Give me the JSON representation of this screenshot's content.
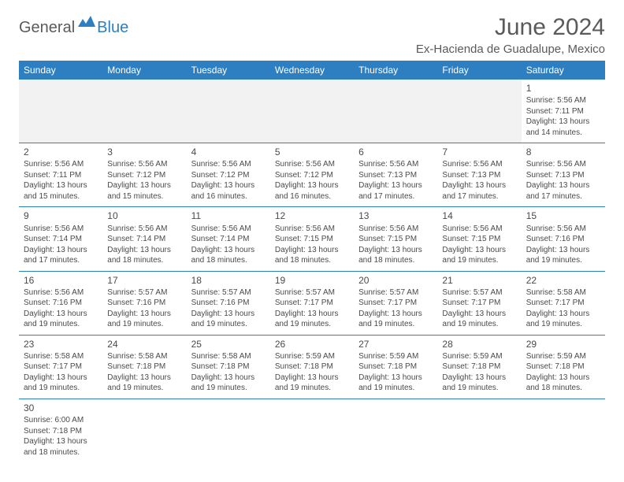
{
  "brand": {
    "part1": "General",
    "part2": "Blue"
  },
  "title": "June 2024",
  "location": "Ex-Hacienda de Guadalupe, Mexico",
  "colors": {
    "header_bg": "#2d7fc1",
    "header_text": "#ffffff",
    "border": "#2d7fc1",
    "empty_bg": "#f2f2f2",
    "body_text": "#4a4a4a",
    "title_text": "#5a5a5a"
  },
  "weekdays": [
    "Sunday",
    "Monday",
    "Tuesday",
    "Wednesday",
    "Thursday",
    "Friday",
    "Saturday"
  ],
  "weeks": [
    [
      null,
      null,
      null,
      null,
      null,
      null,
      {
        "d": "1",
        "sr": "Sunrise: 5:56 AM",
        "ss": "Sunset: 7:11 PM",
        "dl1": "Daylight: 13 hours",
        "dl2": "and 14 minutes."
      }
    ],
    [
      {
        "d": "2",
        "sr": "Sunrise: 5:56 AM",
        "ss": "Sunset: 7:11 PM",
        "dl1": "Daylight: 13 hours",
        "dl2": "and 15 minutes."
      },
      {
        "d": "3",
        "sr": "Sunrise: 5:56 AM",
        "ss": "Sunset: 7:12 PM",
        "dl1": "Daylight: 13 hours",
        "dl2": "and 15 minutes."
      },
      {
        "d": "4",
        "sr": "Sunrise: 5:56 AM",
        "ss": "Sunset: 7:12 PM",
        "dl1": "Daylight: 13 hours",
        "dl2": "and 16 minutes."
      },
      {
        "d": "5",
        "sr": "Sunrise: 5:56 AM",
        "ss": "Sunset: 7:12 PM",
        "dl1": "Daylight: 13 hours",
        "dl2": "and 16 minutes."
      },
      {
        "d": "6",
        "sr": "Sunrise: 5:56 AM",
        "ss": "Sunset: 7:13 PM",
        "dl1": "Daylight: 13 hours",
        "dl2": "and 17 minutes."
      },
      {
        "d": "7",
        "sr": "Sunrise: 5:56 AM",
        "ss": "Sunset: 7:13 PM",
        "dl1": "Daylight: 13 hours",
        "dl2": "and 17 minutes."
      },
      {
        "d": "8",
        "sr": "Sunrise: 5:56 AM",
        "ss": "Sunset: 7:13 PM",
        "dl1": "Daylight: 13 hours",
        "dl2": "and 17 minutes."
      }
    ],
    [
      {
        "d": "9",
        "sr": "Sunrise: 5:56 AM",
        "ss": "Sunset: 7:14 PM",
        "dl1": "Daylight: 13 hours",
        "dl2": "and 17 minutes."
      },
      {
        "d": "10",
        "sr": "Sunrise: 5:56 AM",
        "ss": "Sunset: 7:14 PM",
        "dl1": "Daylight: 13 hours",
        "dl2": "and 18 minutes."
      },
      {
        "d": "11",
        "sr": "Sunrise: 5:56 AM",
        "ss": "Sunset: 7:14 PM",
        "dl1": "Daylight: 13 hours",
        "dl2": "and 18 minutes."
      },
      {
        "d": "12",
        "sr": "Sunrise: 5:56 AM",
        "ss": "Sunset: 7:15 PM",
        "dl1": "Daylight: 13 hours",
        "dl2": "and 18 minutes."
      },
      {
        "d": "13",
        "sr": "Sunrise: 5:56 AM",
        "ss": "Sunset: 7:15 PM",
        "dl1": "Daylight: 13 hours",
        "dl2": "and 18 minutes."
      },
      {
        "d": "14",
        "sr": "Sunrise: 5:56 AM",
        "ss": "Sunset: 7:15 PM",
        "dl1": "Daylight: 13 hours",
        "dl2": "and 19 minutes."
      },
      {
        "d": "15",
        "sr": "Sunrise: 5:56 AM",
        "ss": "Sunset: 7:16 PM",
        "dl1": "Daylight: 13 hours",
        "dl2": "and 19 minutes."
      }
    ],
    [
      {
        "d": "16",
        "sr": "Sunrise: 5:56 AM",
        "ss": "Sunset: 7:16 PM",
        "dl1": "Daylight: 13 hours",
        "dl2": "and 19 minutes."
      },
      {
        "d": "17",
        "sr": "Sunrise: 5:57 AM",
        "ss": "Sunset: 7:16 PM",
        "dl1": "Daylight: 13 hours",
        "dl2": "and 19 minutes."
      },
      {
        "d": "18",
        "sr": "Sunrise: 5:57 AM",
        "ss": "Sunset: 7:16 PM",
        "dl1": "Daylight: 13 hours",
        "dl2": "and 19 minutes."
      },
      {
        "d": "19",
        "sr": "Sunrise: 5:57 AM",
        "ss": "Sunset: 7:17 PM",
        "dl1": "Daylight: 13 hours",
        "dl2": "and 19 minutes."
      },
      {
        "d": "20",
        "sr": "Sunrise: 5:57 AM",
        "ss": "Sunset: 7:17 PM",
        "dl1": "Daylight: 13 hours",
        "dl2": "and 19 minutes."
      },
      {
        "d": "21",
        "sr": "Sunrise: 5:57 AM",
        "ss": "Sunset: 7:17 PM",
        "dl1": "Daylight: 13 hours",
        "dl2": "and 19 minutes."
      },
      {
        "d": "22",
        "sr": "Sunrise: 5:58 AM",
        "ss": "Sunset: 7:17 PM",
        "dl1": "Daylight: 13 hours",
        "dl2": "and 19 minutes."
      }
    ],
    [
      {
        "d": "23",
        "sr": "Sunrise: 5:58 AM",
        "ss": "Sunset: 7:17 PM",
        "dl1": "Daylight: 13 hours",
        "dl2": "and 19 minutes."
      },
      {
        "d": "24",
        "sr": "Sunrise: 5:58 AM",
        "ss": "Sunset: 7:18 PM",
        "dl1": "Daylight: 13 hours",
        "dl2": "and 19 minutes."
      },
      {
        "d": "25",
        "sr": "Sunrise: 5:58 AM",
        "ss": "Sunset: 7:18 PM",
        "dl1": "Daylight: 13 hours",
        "dl2": "and 19 minutes."
      },
      {
        "d": "26",
        "sr": "Sunrise: 5:59 AM",
        "ss": "Sunset: 7:18 PM",
        "dl1": "Daylight: 13 hours",
        "dl2": "and 19 minutes."
      },
      {
        "d": "27",
        "sr": "Sunrise: 5:59 AM",
        "ss": "Sunset: 7:18 PM",
        "dl1": "Daylight: 13 hours",
        "dl2": "and 19 minutes."
      },
      {
        "d": "28",
        "sr": "Sunrise: 5:59 AM",
        "ss": "Sunset: 7:18 PM",
        "dl1": "Daylight: 13 hours",
        "dl2": "and 19 minutes."
      },
      {
        "d": "29",
        "sr": "Sunrise: 5:59 AM",
        "ss": "Sunset: 7:18 PM",
        "dl1": "Daylight: 13 hours",
        "dl2": "and 18 minutes."
      }
    ],
    [
      {
        "d": "30",
        "sr": "Sunrise: 6:00 AM",
        "ss": "Sunset: 7:18 PM",
        "dl1": "Daylight: 13 hours",
        "dl2": "and 18 minutes."
      },
      null,
      null,
      null,
      null,
      null,
      null
    ]
  ]
}
